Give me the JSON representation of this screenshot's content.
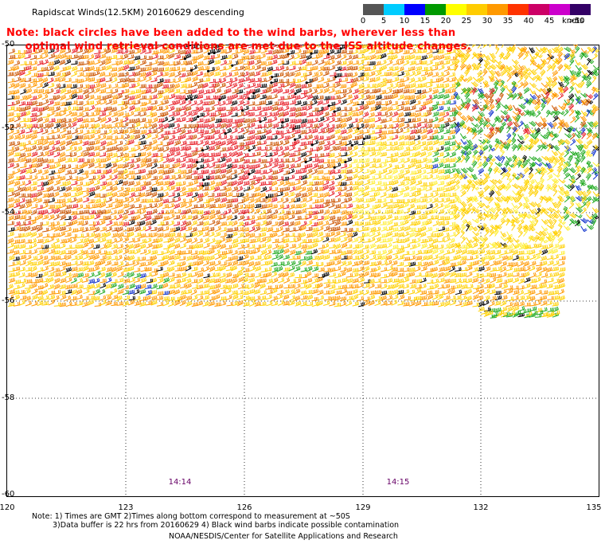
{
  "header": {
    "title": "Rapidscat Winds(12.5KM) 20160629 descending",
    "note_line1": "Note: black circles have been added to the wind barbs, wherever less than",
    "note_line2": "     optimal wind retrieval conditions are met due to the ISS altitude changes."
  },
  "colorbar": {
    "ticks": [
      "0",
      "5",
      "10",
      "15",
      "20",
      "25",
      "30",
      "35",
      "40",
      "45",
      ">50"
    ],
    "units": "knots",
    "colors": [
      "#555555",
      "#00ccff",
      "#0000ff",
      "#009900",
      "#ffff00",
      "#ffcc00",
      "#ff9900",
      "#ff3300",
      "#cc0066",
      "#cc00cc",
      "#330066"
    ]
  },
  "map": {
    "lat_labels": [
      "-50",
      "-52",
      "-54",
      "-56",
      "-58",
      "-60"
    ],
    "lon_labels": [
      "120",
      "123",
      "126",
      "129",
      "132",
      "135"
    ],
    "time_labels": [
      "14:14",
      "14:15"
    ],
    "barb_colors": {
      "orange": "#ff9900",
      "dark_orange": "#cc5500",
      "red": "#e8202a",
      "yellow": "#ffd000",
      "light_yellow": "#ffee33",
      "green": "#22aa22",
      "blue": "#1133cc",
      "black": "#000000"
    }
  },
  "footer": {
    "line1": "Note: 1) Times are GMT 2)Times along bottom correspond to measurement at ~50S",
    "line2": "3)Data buffer is 22 hrs from 20160629 4) Black wind barbs indicate possible contamination",
    "line3": "NOAA/NESDIS/Center for Satellite Applications and Research"
  }
}
